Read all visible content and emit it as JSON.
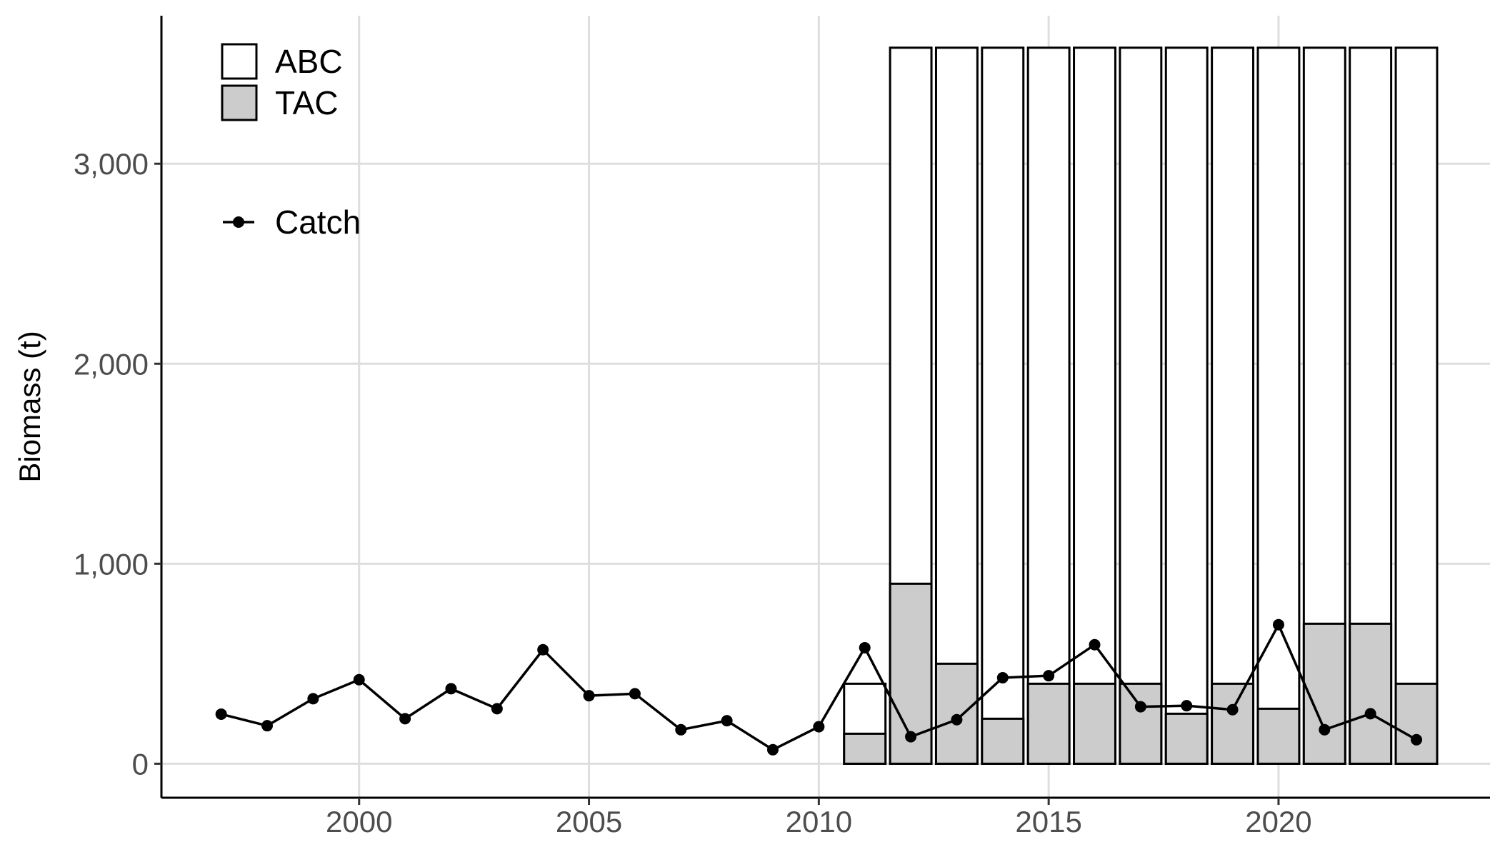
{
  "chart_data": {
    "type": "bar",
    "ylabel": "Biomass (t)",
    "xlabel": "",
    "xlim": [
      1995.7,
      2024.6
    ],
    "ylim": [
      -170,
      3740
    ],
    "x_ticks": [
      2000,
      2005,
      2010,
      2015,
      2020
    ],
    "y_ticks": [
      0,
      1000,
      2000,
      3000
    ],
    "y_tick_labels": [
      "0",
      "1,000",
      "2,000",
      "3,000"
    ],
    "grid": true,
    "legend_position": "top-left",
    "colors": {
      "abc_fill": "#ffffff",
      "tac_fill": "#cccccc",
      "bar_stroke": "#000000",
      "catch_line": "#000000",
      "grid": "#dedede"
    },
    "legend": {
      "bars": [
        {
          "label": "ABC",
          "fill": "#ffffff"
        },
        {
          "label": "TAC",
          "fill": "#cccccc"
        }
      ],
      "line": {
        "label": "Catch"
      }
    },
    "bars": {
      "years": [
        2011,
        2012,
        2013,
        2014,
        2015,
        2016,
        2017,
        2018,
        2019,
        2020,
        2021,
        2022,
        2023
      ],
      "abc": [
        400,
        3580,
        3580,
        3580,
        3580,
        3580,
        3580,
        3580,
        3580,
        3580,
        3580,
        3580,
        3580
      ],
      "tac": [
        150,
        900,
        500,
        225,
        400,
        400,
        400,
        250,
        400,
        275,
        700,
        700,
        400
      ]
    },
    "catch": {
      "years": [
        1997,
        1998,
        1999,
        2000,
        2001,
        2002,
        2003,
        2004,
        2005,
        2006,
        2007,
        2008,
        2009,
        2010,
        2011,
        2012,
        2013,
        2014,
        2015,
        2016,
        2017,
        2018,
        2019,
        2020,
        2021,
        2022,
        2023
      ],
      "values": [
        248,
        190,
        325,
        420,
        225,
        375,
        275,
        570,
        340,
        350,
        170,
        215,
        70,
        185,
        580,
        135,
        220,
        430,
        440,
        595,
        285,
        290,
        270,
        695,
        170,
        250,
        120
      ]
    }
  }
}
